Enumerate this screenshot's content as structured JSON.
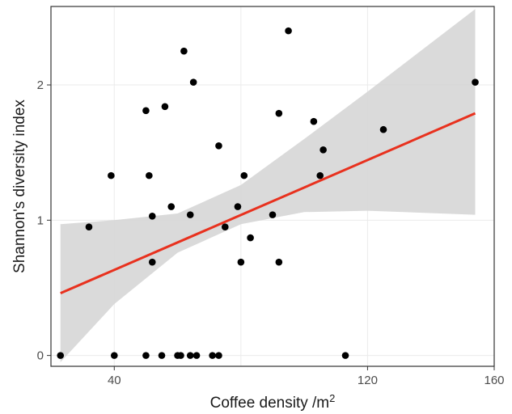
{
  "chart_data": {
    "type": "scatter",
    "title": "",
    "xlabel": "Coffee density /m",
    "xlabel_superscript": "2",
    "ylabel": "Shannon's diversity index",
    "xlim": [
      20,
      160
    ],
    "ylim": [
      -0.08,
      2.58
    ],
    "x_ticks": [
      40,
      120,
      160
    ],
    "x_tick_labels": [
      "40",
      "120",
      "160"
    ],
    "x_gridlines": [
      40,
      80,
      120,
      160
    ],
    "y_ticks": [
      0,
      1,
      2
    ],
    "y_tick_labels": [
      "0",
      "1",
      "2"
    ],
    "grid": true,
    "legend": "none",
    "points": [
      {
        "x": 23,
        "y": 0.0
      },
      {
        "x": 32,
        "y": 0.95
      },
      {
        "x": 39,
        "y": 1.33
      },
      {
        "x": 40,
        "y": 0.0
      },
      {
        "x": 50,
        "y": 1.81
      },
      {
        "x": 50,
        "y": 0.0
      },
      {
        "x": 51,
        "y": 1.33
      },
      {
        "x": 52,
        "y": 1.03
      },
      {
        "x": 52,
        "y": 0.69
      },
      {
        "x": 55,
        "y": 0.0
      },
      {
        "x": 56,
        "y": 1.84
      },
      {
        "x": 58,
        "y": 1.1
      },
      {
        "x": 60,
        "y": 0.0
      },
      {
        "x": 61,
        "y": 0.0
      },
      {
        "x": 62,
        "y": 2.25
      },
      {
        "x": 64,
        "y": 1.04
      },
      {
        "x": 64,
        "y": 0.0
      },
      {
        "x": 65,
        "y": 2.02
      },
      {
        "x": 66,
        "y": 0.0
      },
      {
        "x": 71,
        "y": 0.0
      },
      {
        "x": 73,
        "y": 1.55
      },
      {
        "x": 73,
        "y": 0.0
      },
      {
        "x": 75,
        "y": 0.95
      },
      {
        "x": 79,
        "y": 1.1
      },
      {
        "x": 80,
        "y": 0.69
      },
      {
        "x": 81,
        "y": 1.33
      },
      {
        "x": 83,
        "y": 0.87
      },
      {
        "x": 90,
        "y": 1.04
      },
      {
        "x": 92,
        "y": 1.79
      },
      {
        "x": 92,
        "y": 0.69
      },
      {
        "x": 95,
        "y": 2.4
      },
      {
        "x": 103,
        "y": 1.73
      },
      {
        "x": 105,
        "y": 1.33
      },
      {
        "x": 106,
        "y": 1.52
      },
      {
        "x": 113,
        "y": 0.0
      },
      {
        "x": 125,
        "y": 1.67
      },
      {
        "x": 154,
        "y": 2.02
      }
    ],
    "fit_line": {
      "x": [
        23,
        154
      ],
      "y": [
        0.46,
        1.79
      ],
      "color": "#e8311e"
    },
    "confidence_band": {
      "x": [
        23,
        40,
        60,
        80,
        100,
        120,
        154
      ],
      "lower": [
        -0.05,
        0.38,
        0.76,
        0.97,
        1.06,
        1.07,
        1.04
      ],
      "upper": [
        0.97,
        1.0,
        1.05,
        1.26,
        1.6,
        1.95,
        2.56
      ],
      "color": "#d4d4d4"
    },
    "colors": {
      "background": "#ffffff",
      "panel_border": "#333333",
      "gridline": "#ebebeb",
      "point": "#000000"
    }
  }
}
